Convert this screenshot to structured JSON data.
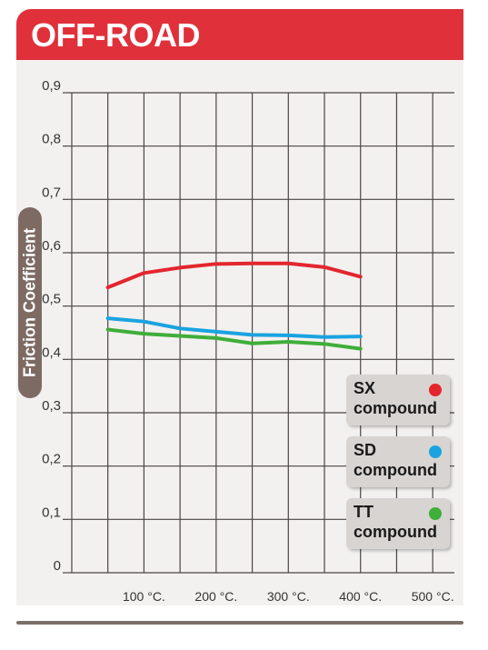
{
  "header": {
    "title": "OFF-ROAD"
  },
  "chart_data": {
    "type": "line",
    "ylabel": "Friction Coefficient",
    "ylim": [
      0,
      0.9
    ],
    "yticks": [
      "0",
      "0,1",
      "0,2",
      "0,3",
      "0,4",
      "0,5",
      "0,6",
      "0,7",
      "0,8",
      "0,9"
    ],
    "xticks": [
      "100 °C.",
      "200 °C.",
      "300 °C.",
      "400 °C.",
      "500 °C."
    ],
    "xtick_values": [
      100,
      200,
      300,
      400,
      500
    ],
    "xlim": [
      -5,
      530
    ],
    "grid": true,
    "legend_position": "right",
    "x": [
      50,
      100,
      150,
      200,
      250,
      300,
      350,
      400
    ],
    "series": [
      {
        "name": "SX",
        "label2": "compound",
        "color": "#e3262e",
        "values": [
          0.535,
          0.562,
          0.572,
          0.579,
          0.58,
          0.58,
          0.573,
          0.555
        ]
      },
      {
        "name": "SD",
        "label2": "compound",
        "color": "#1aa3e0",
        "values": [
          0.477,
          0.471,
          0.458,
          0.452,
          0.446,
          0.445,
          0.442,
          0.443
        ]
      },
      {
        "name": "TT",
        "label2": "compound",
        "color": "#3fae3a",
        "values": [
          0.456,
          0.448,
          0.444,
          0.44,
          0.43,
          0.433,
          0.429,
          0.42
        ]
      }
    ]
  }
}
